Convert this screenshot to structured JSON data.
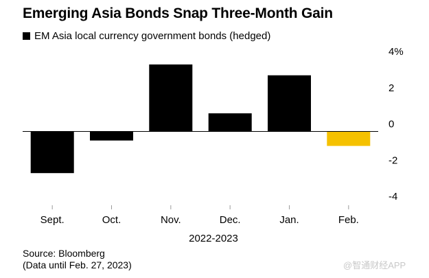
{
  "chart_data": {
    "type": "bar",
    "title": "Emerging Asia Bonds Snap Three-Month Gain",
    "legend": [
      {
        "label": "EM Asia local currency government bonds (hedged)",
        "color": "#000000"
      }
    ],
    "categories": [
      "Sept.",
      "Oct.",
      "Nov.",
      "Dec.",
      "Jan.",
      "Feb."
    ],
    "values": [
      -2.3,
      -0.5,
      3.7,
      1.0,
      3.1,
      -0.8
    ],
    "bar_colors": [
      "#000000",
      "#000000",
      "#000000",
      "#000000",
      "#000000",
      "#f5c100"
    ],
    "xlabel": "2022-2023",
    "ylabel": "",
    "ylim": [
      -4,
      4
    ],
    "yticks": [
      4,
      2,
      0,
      -2,
      -4
    ],
    "ytick_labels": [
      "4%",
      "2",
      "0",
      "-2",
      "-4"
    ],
    "y_axis_side": "right",
    "grid": false
  },
  "source_line": "Source: Bloomberg",
  "note_line": "(Data until Feb. 27, 2023)",
  "watermark": "@智通财经APP"
}
